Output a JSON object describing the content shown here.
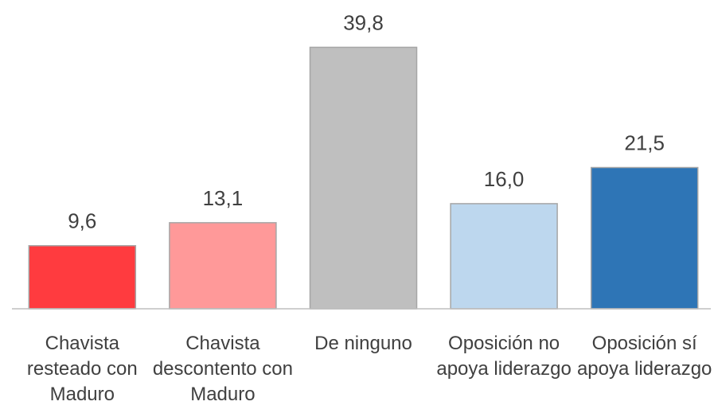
{
  "chart_data": {
    "type": "bar",
    "categories": [
      "Chavista resteado con Maduro",
      "Chavista descontento con Maduro",
      "De ninguno",
      "Oposición no apoya liderazgo",
      "Oposición sí apoya liderazgo"
    ],
    "values": [
      9.6,
      13.1,
      39.8,
      16.0,
      21.5
    ],
    "value_labels": [
      "9,6",
      "13,1",
      "39,8",
      "16,0",
      "21,5"
    ],
    "colors": [
      "#ff3b3f",
      "#ff9999",
      "#bfbfbf",
      "#bdd7ee",
      "#2e75b6"
    ],
    "ylim": [
      0,
      47
    ]
  }
}
